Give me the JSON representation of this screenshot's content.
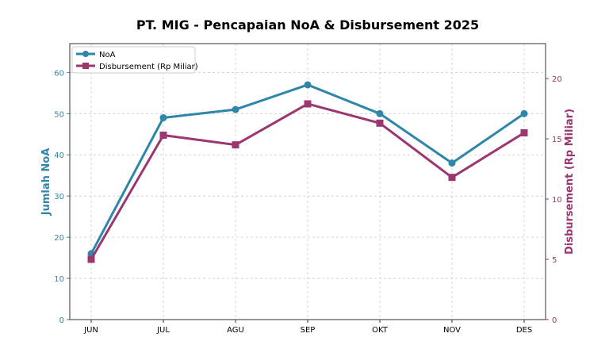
{
  "chart_data": {
    "type": "line",
    "title": "PT. MIG - Pencapaian NoA & Disbursement 2025",
    "categories": [
      "JUN",
      "JUL",
      "AGU",
      "SEP",
      "OKT",
      "NOV",
      "DES"
    ],
    "ylabel": "Jumlah NoA",
    "y2label": "Disbursement (Rp Miliar)",
    "ylim": [
      0,
      67
    ],
    "y2lim": [
      0,
      22.9
    ],
    "yticks": [
      0,
      10,
      20,
      30,
      40,
      50,
      60
    ],
    "y2ticks": [
      0,
      5,
      10,
      15,
      20
    ],
    "grid": true,
    "legend": "top-left",
    "series": [
      {
        "name": "NoA",
        "axis": "left",
        "marker": "circle",
        "color": "#2e86a8",
        "values": [
          16,
          49,
          51,
          57,
          50,
          38,
          50
        ]
      },
      {
        "name": "Disbursement (Rp Miliar)",
        "axis": "right",
        "marker": "square",
        "color": "#9b3670",
        "values": [
          5.0,
          15.3,
          14.5,
          17.9,
          16.3,
          11.8,
          15.5
        ]
      }
    ]
  }
}
